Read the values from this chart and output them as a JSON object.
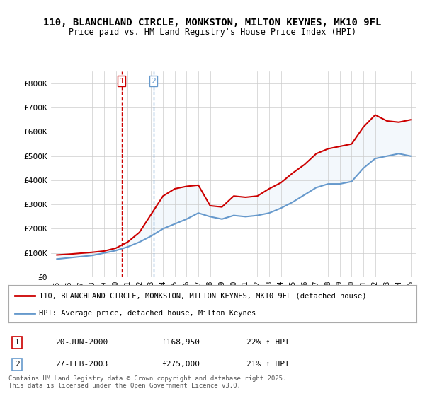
{
  "title": "110, BLANCHLAND CIRCLE, MONKSTON, MILTON KEYNES, MK10 9FL",
  "subtitle": "Price paid vs. HM Land Registry's House Price Index (HPI)",
  "legend_line1": "110, BLANCHLAND CIRCLE, MONKSTON, MILTON KEYNES, MK10 9FL (detached house)",
  "legend_line2": "HPI: Average price, detached house, Milton Keynes",
  "transaction1_label": "1",
  "transaction1_date": "20-JUN-2000",
  "transaction1_price": "£168,950",
  "transaction1_hpi": "22% ↑ HPI",
  "transaction2_label": "2",
  "transaction2_date": "27-FEB-2003",
  "transaction2_price": "£275,000",
  "transaction2_hpi": "21% ↑ HPI",
  "footer": "Contains HM Land Registry data © Crown copyright and database right 2025.\nThis data is licensed under the Open Government Licence v3.0.",
  "line1_color": "#cc0000",
  "line2_color": "#6699cc",
  "shade_color": "#d0e4f7",
  "vline1_color": "#cc0000",
  "vline2_color": "#6699cc",
  "background_color": "#ffffff",
  "grid_color": "#cccccc",
  "ylim": [
    0,
    850000
  ],
  "yticks": [
    0,
    100000,
    200000,
    300000,
    400000,
    500000,
    600000,
    700000,
    800000
  ],
  "ytick_labels": [
    "£0",
    "£100K",
    "£200K",
    "£300K",
    "£400K",
    "£500K",
    "£600K",
    "£700K",
    "£800K"
  ],
  "hpi_years": [
    1995,
    1996,
    1997,
    1998,
    1999,
    2000,
    2001,
    2002,
    2003,
    2004,
    2005,
    2006,
    2007,
    2008,
    2009,
    2010,
    2011,
    2012,
    2013,
    2014,
    2015,
    2016,
    2017,
    2018,
    2019,
    2020,
    2021,
    2022,
    2023,
    2024,
    2025
  ],
  "hpi_values": [
    75000,
    80000,
    85000,
    90000,
    100000,
    110000,
    125000,
    145000,
    170000,
    200000,
    220000,
    240000,
    265000,
    250000,
    240000,
    255000,
    250000,
    255000,
    265000,
    285000,
    310000,
    340000,
    370000,
    385000,
    385000,
    395000,
    450000,
    490000,
    500000,
    510000,
    500000
  ],
  "price_years": [
    1995,
    1996,
    1997,
    1998,
    1999,
    2000,
    2001,
    2002,
    2003,
    2004,
    2005,
    2006,
    2007,
    2008,
    2009,
    2010,
    2011,
    2012,
    2013,
    2014,
    2015,
    2016,
    2017,
    2018,
    2019,
    2020,
    2021,
    2022,
    2023,
    2024,
    2025
  ],
  "price_values": [
    92000,
    95000,
    99000,
    103000,
    108000,
    120000,
    145000,
    185000,
    260000,
    335000,
    365000,
    375000,
    380000,
    295000,
    290000,
    335000,
    330000,
    335000,
    365000,
    390000,
    430000,
    465000,
    510000,
    530000,
    540000,
    550000,
    620000,
    670000,
    645000,
    640000,
    650000
  ],
  "transaction1_x": 2000.5,
  "transaction2_x": 2003.2,
  "xlim": [
    1994.5,
    2025.5
  ],
  "xticks": [
    1995,
    1996,
    1997,
    1998,
    1999,
    2000,
    2001,
    2002,
    2003,
    2004,
    2005,
    2006,
    2007,
    2008,
    2009,
    2010,
    2011,
    2012,
    2013,
    2014,
    2015,
    2016,
    2017,
    2018,
    2019,
    2020,
    2021,
    2022,
    2023,
    2024,
    2025
  ]
}
